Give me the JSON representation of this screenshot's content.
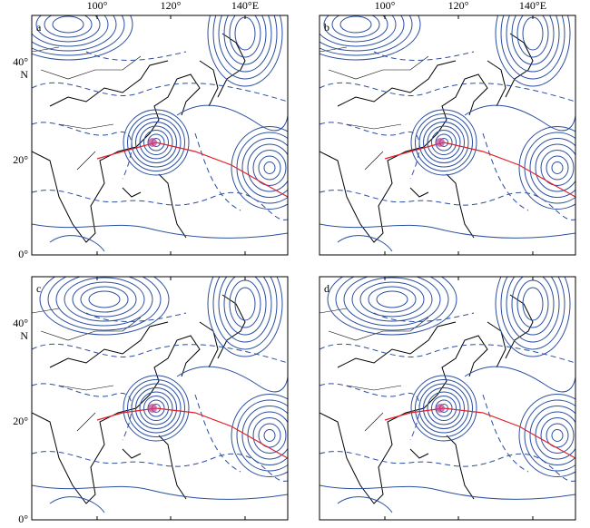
{
  "longitude_labels": [
    "100°",
    "120°",
    "140°E"
  ],
  "latitude_labels": [
    "40°",
    "N",
    "20°",
    "0°"
  ],
  "panels": [
    {
      "label": "a"
    },
    {
      "label": "b"
    },
    {
      "label": "c"
    },
    {
      "label": "d"
    }
  ]
}
